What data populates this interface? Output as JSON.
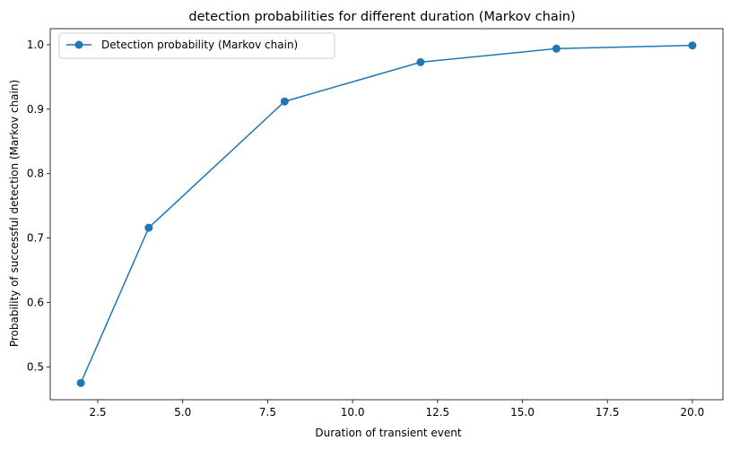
{
  "chart_data": {
    "type": "line",
    "title": "detection probabilities for different duration (Markov chain)",
    "xlabel": "Duration of transient event",
    "ylabel": "Probability of successful detection (Markov chain)",
    "xlim": [
      1.1,
      20.9
    ],
    "ylim": [
      0.449,
      1.025
    ],
    "xticks": [
      2.5,
      5.0,
      7.5,
      10.0,
      12.5,
      15.0,
      17.5,
      20.0
    ],
    "xtick_labels": [
      "2.5",
      "5.0",
      "7.5",
      "10.0",
      "12.5",
      "15.0",
      "17.5",
      "20.0"
    ],
    "yticks": [
      0.5,
      0.6,
      0.7,
      0.8,
      0.9,
      1.0
    ],
    "ytick_labels": [
      "0.5",
      "0.6",
      "0.7",
      "0.8",
      "0.9",
      "1.0"
    ],
    "grid": false,
    "legend_position": "top-left",
    "series": [
      {
        "name": "Detection probability (Markov chain)",
        "color": "#1f77b4",
        "marker": "circle",
        "x": [
          2,
          4,
          8,
          12,
          16,
          20
        ],
        "y": [
          0.475,
          0.716,
          0.912,
          0.973,
          0.994,
          0.999
        ]
      }
    ]
  }
}
